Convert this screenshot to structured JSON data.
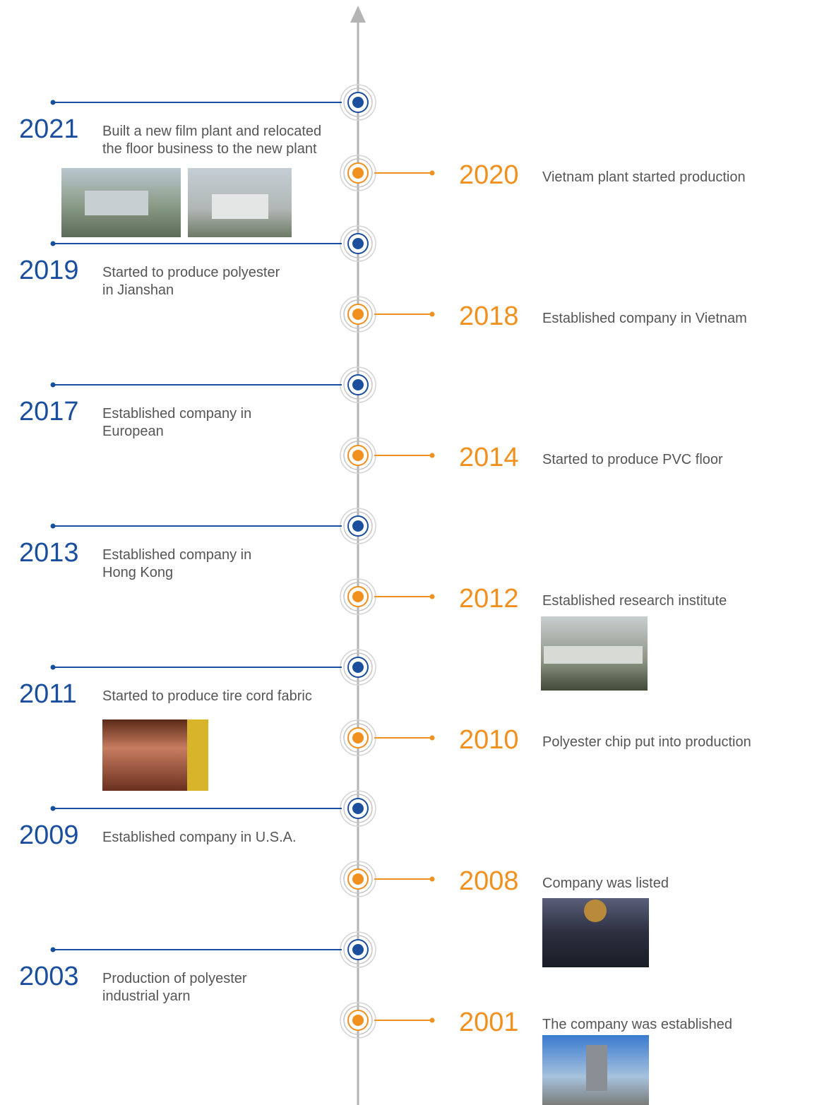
{
  "timeline": {
    "events": [
      {
        "year": "2021",
        "lines": [
          "Built a new film plant and relocated",
          "the floor business to the new plant"
        ]
      },
      {
        "year": "2020",
        "lines": [
          "Vietnam plant started production"
        ]
      },
      {
        "year": "2019",
        "lines": [
          "Started to produce polyester",
          "in Jianshan"
        ]
      },
      {
        "year": "2018",
        "lines": [
          "Established company in Vietnam"
        ]
      },
      {
        "year": "2017",
        "lines": [
          "Established company in",
          "European"
        ]
      },
      {
        "year": "2014",
        "lines": [
          "Started to produce PVC floor"
        ]
      },
      {
        "year": "2013",
        "lines": [
          "Established company in",
          "Hong Kong"
        ]
      },
      {
        "year": "2012",
        "lines": [
          "Established research institute"
        ]
      },
      {
        "year": "2011",
        "lines": [
          "Started to produce tire cord fabric"
        ]
      },
      {
        "year": "2010",
        "lines": [
          "Polyester chip put into production"
        ]
      },
      {
        "year": "2009",
        "lines": [
          "Established company in U.S.A."
        ]
      },
      {
        "year": "2008",
        "lines": [
          "Company was listed"
        ]
      },
      {
        "year": "2003",
        "lines": [
          "Production of polyester",
          "industrial yarn"
        ]
      },
      {
        "year": "2001",
        "lines": [
          "The company was established"
        ]
      }
    ]
  }
}
